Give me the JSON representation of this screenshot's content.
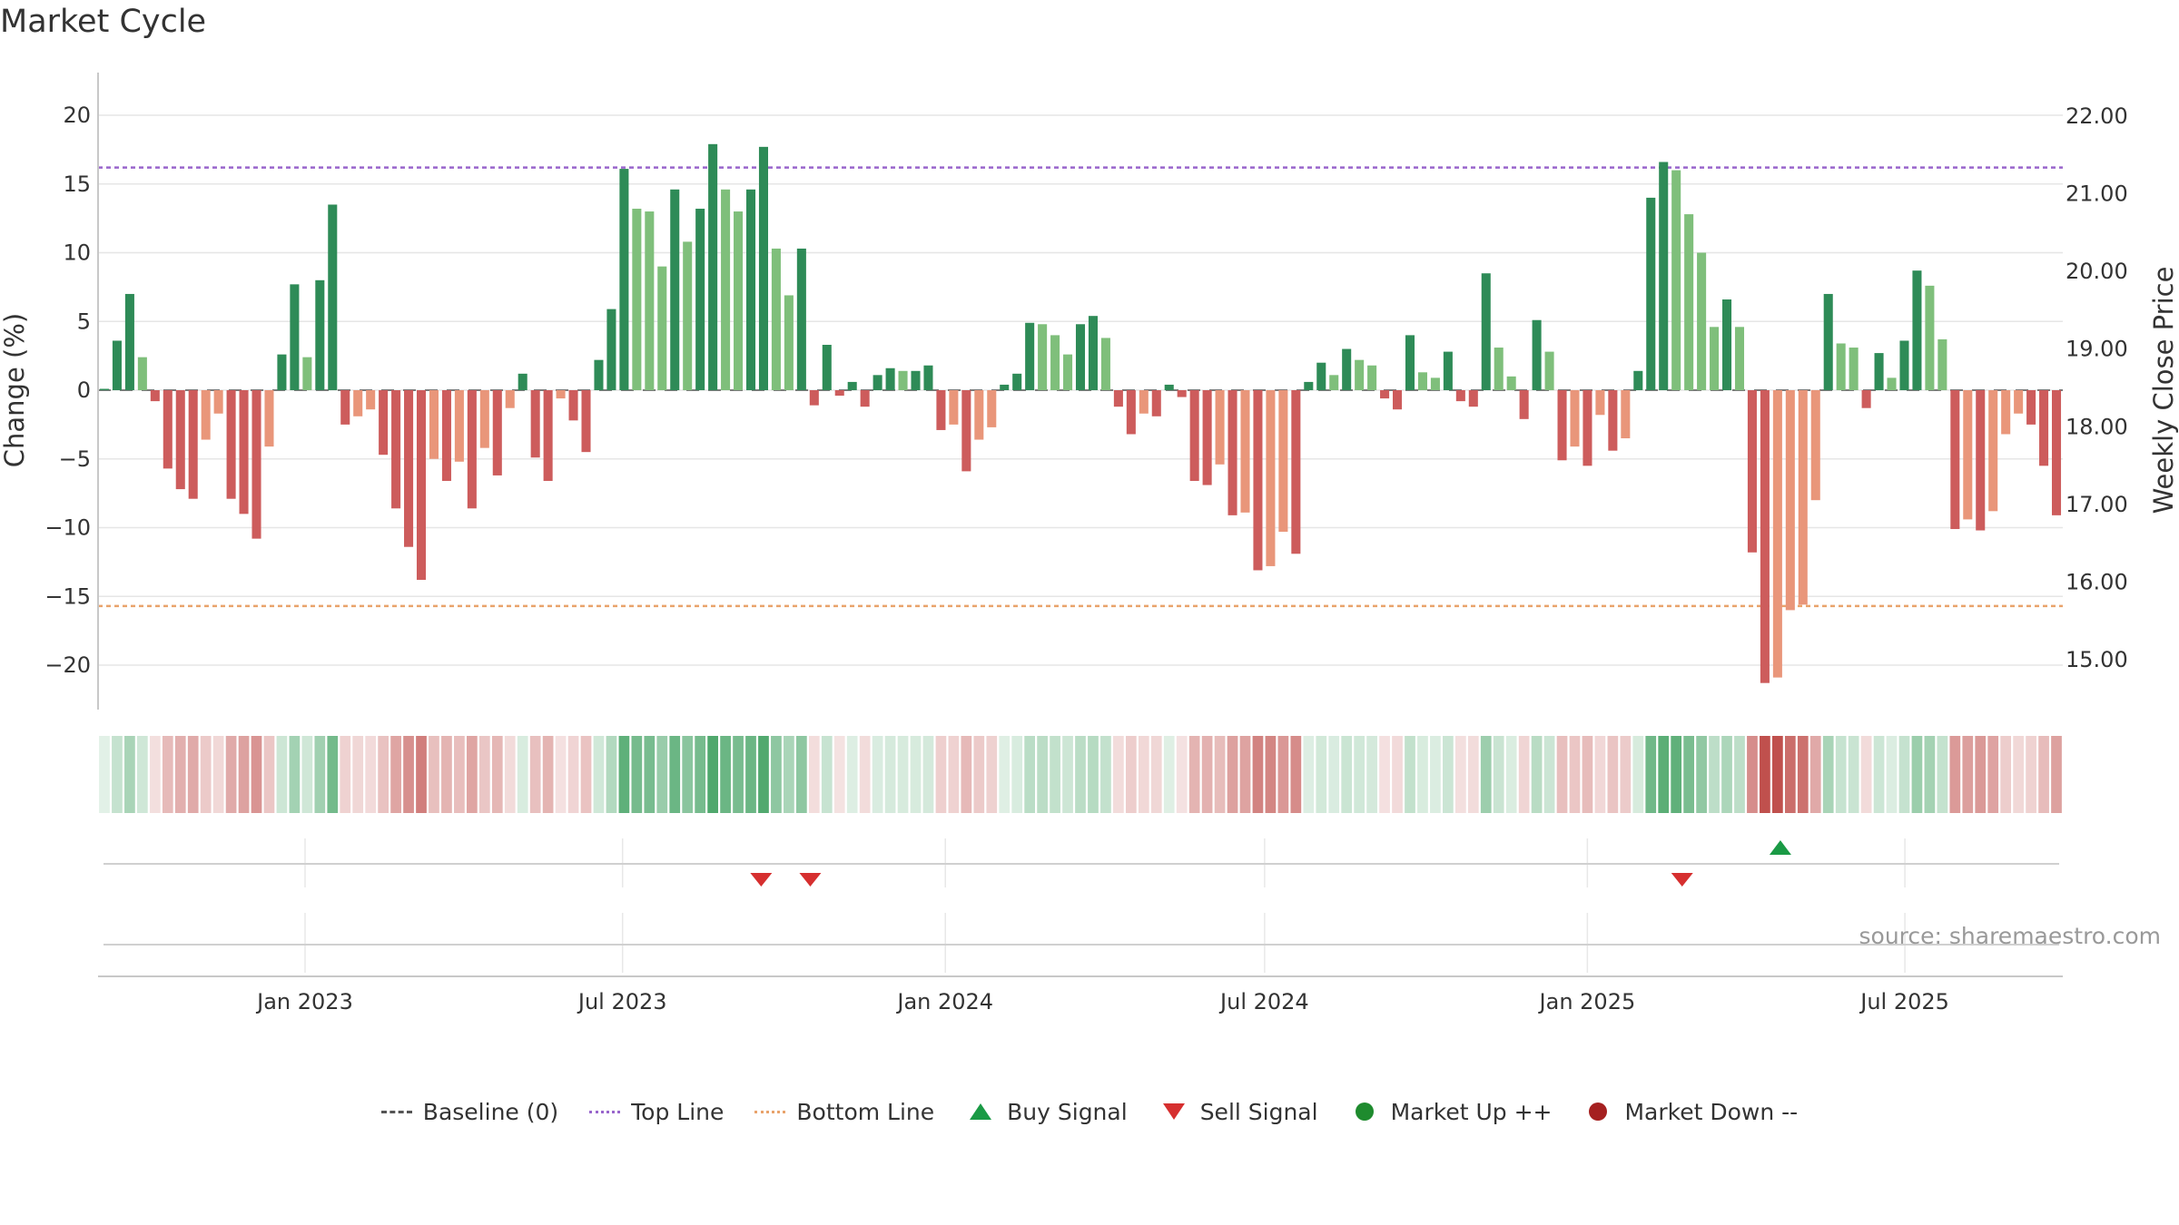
{
  "title": "Market Cycle",
  "source": "source: sharemaestro.com",
  "colors": {
    "up_strong": "#2e8b57",
    "up_light": "#7fbf7b",
    "down_strong": "#cd5c5c",
    "down_light": "#e9967a",
    "top_line": "#9966cc",
    "bottom_line": "#e9a36b",
    "baseline": "#555555",
    "buy": "#1a9a45",
    "sell": "#d62f2f",
    "market_up": "#1e8b2e",
    "market_down": "#a52020"
  },
  "legend": [
    {
      "label": "Baseline (0)",
      "icon": "dash-gray"
    },
    {
      "label": "Top Line",
      "icon": "dot-purple"
    },
    {
      "label": "Bottom Line",
      "icon": "dot-orange"
    },
    {
      "label": "Buy Signal",
      "icon": "triangle-up-green"
    },
    {
      "label": "Sell Signal",
      "icon": "triangle-down-red"
    },
    {
      "label": "Market Up ++",
      "icon": "circle-green"
    },
    {
      "label": "Market Down --",
      "icon": "circle-darkred"
    }
  ],
  "chart_data": {
    "type": "bar",
    "ylabel": "Change (%)",
    "ylabel_right": "Weekly Close Price",
    "ylim": [
      -23.5,
      23
    ],
    "y_ticks": [
      20,
      15,
      10,
      5,
      0,
      -5,
      -10,
      -15,
      -20
    ],
    "y_tick_labels": [
      "20",
      "15",
      "10",
      "5",
      "0",
      "−5",
      "−10",
      "−15",
      "−20"
    ],
    "y2lim": [
      14.36,
      22.55
    ],
    "y2_ticks": [
      22.0,
      21.0,
      20.0,
      19.0,
      18.0,
      17.0,
      16.0,
      15.0
    ],
    "y2_tick_labels": [
      "22.00",
      "21.00",
      "20.00",
      "19.00",
      "18.00",
      "17.00",
      "16.00",
      "15.00"
    ],
    "x_start": "2022-09-05",
    "x_end": "2025-09-29",
    "x_ticks": [
      {
        "date": "2023-01-01",
        "label": "Jan 2023"
      },
      {
        "date": "2023-07-01",
        "label": "Jul 2023"
      },
      {
        "date": "2024-01-01",
        "label": "Jan 2024"
      },
      {
        "date": "2024-07-01",
        "label": "Jul 2024"
      },
      {
        "date": "2025-01-01",
        "label": "Jan 2025"
      },
      {
        "date": "2025-07-01",
        "label": "Jul 2025"
      }
    ],
    "top_line": 16.2,
    "bottom_line": -15.7,
    "grid": true,
    "legend_position": "bottom",
    "values": [
      0,
      3.6,
      7.0,
      2.4,
      -0.8,
      -5.7,
      -7.2,
      -7.9,
      -3.6,
      -1.7,
      -7.9,
      -9.0,
      -10.8,
      -4.1,
      2.6,
      7.7,
      2.4,
      8.0,
      13.5,
      -2.5,
      -1.9,
      -1.4,
      -4.7,
      -8.6,
      -11.4,
      -13.8,
      -5.0,
      -6.6,
      -5.2,
      -8.6,
      -4.2,
      -6.2,
      -1.3,
      1.2,
      -4.9,
      -6.6,
      -0.6,
      -2.2,
      -4.5,
      2.2,
      5.9,
      16.1,
      13.2,
      13.0,
      9.0,
      14.6,
      10.8,
      13.2,
      17.9,
      14.6,
      13.0,
      14.6,
      17.7,
      10.3,
      6.9,
      10.3,
      -1.1,
      3.3,
      -0.4,
      0.6,
      -1.2,
      1.1,
      1.6,
      1.4,
      1.4,
      1.8,
      -2.9,
      -2.5,
      -5.9,
      -3.6,
      -2.7,
      0.4,
      1.2,
      4.9,
      4.8,
      4.0,
      2.6,
      4.8,
      5.4,
      3.8,
      -1.2,
      -3.2,
      -1.7,
      -1.9,
      0.4,
      -0.5,
      -6.6,
      -6.9,
      -5.4,
      -9.1,
      -8.9,
      -13.1,
      -12.8,
      -10.3,
      -11.9,
      0.6,
      2.0,
      1.1,
      3.0,
      2.2,
      1.8,
      -0.6,
      -1.4,
      4.0,
      1.3,
      0.9,
      2.8,
      -0.8,
      -1.2,
      8.5,
      3.1,
      1.0,
      -2.1,
      5.1,
      2.8,
      -5.1,
      -4.1,
      -5.5,
      -1.8,
      -4.4,
      -3.5,
      1.4,
      14.0,
      16.6,
      16.0,
      12.8,
      10.0,
      4.6,
      6.6,
      4.6,
      -11.8,
      -21.3,
      -20.9,
      -16.0,
      -15.6,
      -8.0,
      7.0,
      3.4,
      3.1,
      -1.3,
      2.7,
      0.9,
      3.6,
      8.7,
      7.6,
      3.7,
      -10.1,
      -9.4,
      -10.2,
      -8.8,
      -3.2,
      -1.7,
      -2.5,
      -5.5,
      -9.1
    ],
    "signals": [
      {
        "date": "2023-09-18",
        "type": "sell"
      },
      {
        "date": "2023-10-16",
        "type": "sell"
      },
      {
        "date": "2025-02-24",
        "type": "sell"
      },
      {
        "date": "2025-04-21",
        "type": "buy"
      }
    ]
  }
}
